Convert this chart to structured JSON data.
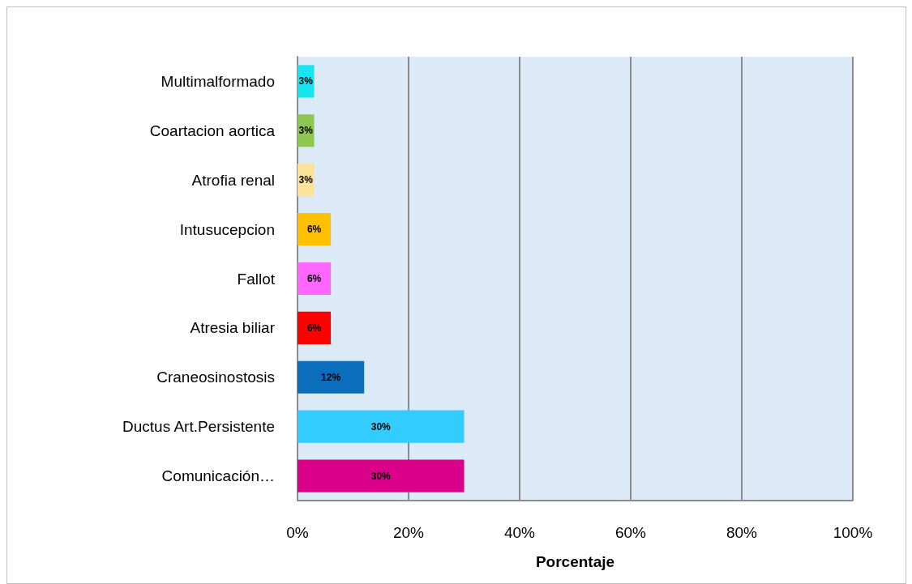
{
  "chart_data": {
    "type": "bar",
    "orientation": "horizontal",
    "categories": [
      "Multimalformado",
      "Coartacion aortica",
      "Atrofia renal",
      "Intusucepcion",
      "Fallot",
      "Atresia biliar",
      "Craneosinostosis",
      "Ductus Art.Persistente",
      "Comunicación…"
    ],
    "values": [
      3,
      3,
      3,
      6,
      6,
      6,
      12,
      30,
      30
    ],
    "colors": [
      "#17e6f0",
      "#8fc850",
      "#fce39a",
      "#ffc000",
      "#ff66ff",
      "#ff0000",
      "#0a6ebd",
      "#33ccff",
      "#da0089"
    ],
    "value_labels": [
      "3%",
      "3%",
      "3%",
      "6%",
      "6%",
      "6%",
      "12%",
      "30%",
      "30%"
    ],
    "xlabel": "Porcentaje",
    "xlim": [
      0,
      100
    ],
    "xticks": [
      {
        "value": 0,
        "label": "0%"
      },
      {
        "value": 20,
        "label": "20%"
      },
      {
        "value": 40,
        "label": "40%"
      },
      {
        "value": 60,
        "label": "60%"
      },
      {
        "value": 80,
        "label": "80%"
      },
      {
        "value": 100,
        "label": "100%"
      }
    ],
    "grid": "x"
  }
}
